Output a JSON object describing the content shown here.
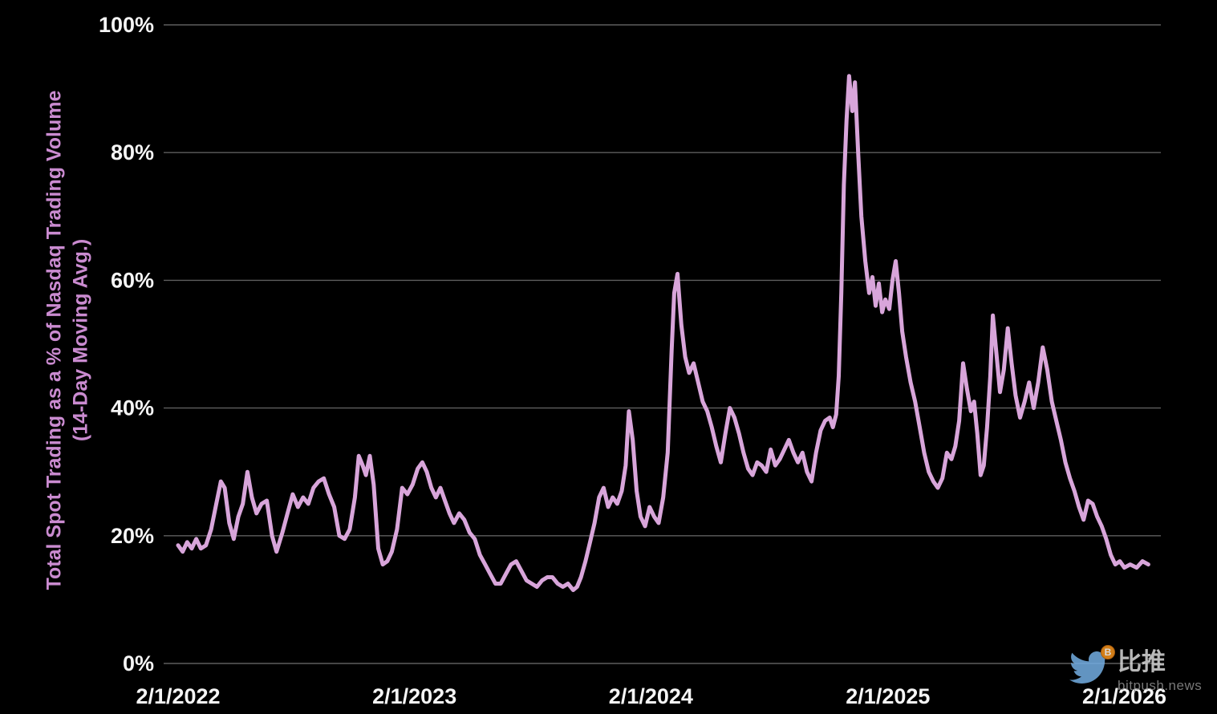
{
  "page": {
    "background": "#000000"
  },
  "chart_data": {
    "type": "line",
    "title": "",
    "xlabel": "",
    "ylabel": "Total Spot Trading as a % of Nasdaq Trading Volume (14-Day Moving Avg.)",
    "ylabel_line1": "Total Spot Trading as a % of Nasdaq Trading Volume",
    "ylabel_line2": "(14-Day Moving Avg.)",
    "ylim": [
      0,
      100
    ],
    "yticks": [
      0,
      20,
      40,
      60,
      80,
      100
    ],
    "ytick_labels": [
      "0%",
      "20%",
      "40%",
      "60%",
      "80%",
      "100%"
    ],
    "xtick_dates": [
      "2022-02-01",
      "2023-02-01",
      "2024-02-01",
      "2025-02-01",
      "2026-02-01"
    ],
    "xtick_labels": [
      "2/1/2022",
      "2/1/2023",
      "2/1/2024",
      "2/1/2025",
      "2/1/2026"
    ],
    "x_range": [
      "2022-02-01",
      "2026-03-12"
    ],
    "grid": "horizontal",
    "grid_color": "#6f6f6f",
    "axis_label_color": "#f5f5f5",
    "line_color": "#d8a5da",
    "line_width": 5,
    "series": [
      {
        "name": "Total Spot Trading as a % of Nasdaq Trading Volume (14-Day Moving Avg.)",
        "points": [
          [
            "2022-02-01",
            18.5
          ],
          [
            "2022-02-08",
            17.5
          ],
          [
            "2022-02-15",
            19
          ],
          [
            "2022-02-22",
            18
          ],
          [
            "2022-03-01",
            19.5
          ],
          [
            "2022-03-08",
            18
          ],
          [
            "2022-03-16",
            18.5
          ],
          [
            "2022-03-24",
            21
          ],
          [
            "2022-04-01",
            25
          ],
          [
            "2022-04-08",
            28.5
          ],
          [
            "2022-04-14",
            27.5
          ],
          [
            "2022-04-21",
            22
          ],
          [
            "2022-04-28",
            19.5
          ],
          [
            "2022-05-05",
            23
          ],
          [
            "2022-05-12",
            25
          ],
          [
            "2022-05-19",
            30
          ],
          [
            "2022-05-26",
            26
          ],
          [
            "2022-06-02",
            23.5
          ],
          [
            "2022-06-10",
            25
          ],
          [
            "2022-06-18",
            25.5
          ],
          [
            "2022-06-26",
            20
          ],
          [
            "2022-07-03",
            17.5
          ],
          [
            "2022-07-12",
            20.5
          ],
          [
            "2022-07-20",
            23.5
          ],
          [
            "2022-07-28",
            26.5
          ],
          [
            "2022-08-05",
            24.5
          ],
          [
            "2022-08-13",
            26
          ],
          [
            "2022-08-21",
            25
          ],
          [
            "2022-08-29",
            27.5
          ],
          [
            "2022-09-06",
            28.5
          ],
          [
            "2022-09-14",
            29
          ],
          [
            "2022-09-22",
            26.5
          ],
          [
            "2022-09-30",
            24.5
          ],
          [
            "2022-10-08",
            20
          ],
          [
            "2022-10-16",
            19.5
          ],
          [
            "2022-10-24",
            21
          ],
          [
            "2022-11-01",
            26
          ],
          [
            "2022-11-07",
            32.5
          ],
          [
            "2022-11-13",
            31
          ],
          [
            "2022-11-18",
            29.5
          ],
          [
            "2022-11-24",
            32.5
          ],
          [
            "2022-11-30",
            28
          ],
          [
            "2022-12-07",
            18
          ],
          [
            "2022-12-14",
            15.5
          ],
          [
            "2022-12-21",
            16
          ],
          [
            "2022-12-28",
            17.5
          ],
          [
            "2023-01-05",
            21
          ],
          [
            "2023-01-13",
            27.5
          ],
          [
            "2023-01-21",
            26.5
          ],
          [
            "2023-01-29",
            28
          ],
          [
            "2023-02-06",
            30.5
          ],
          [
            "2023-02-13",
            31.5
          ],
          [
            "2023-02-20",
            30
          ],
          [
            "2023-02-27",
            27.5
          ],
          [
            "2023-03-06",
            26
          ],
          [
            "2023-03-13",
            27.5
          ],
          [
            "2023-03-20",
            25.5
          ],
          [
            "2023-03-27",
            23.5
          ],
          [
            "2023-04-03",
            22
          ],
          [
            "2023-04-11",
            23.5
          ],
          [
            "2023-04-19",
            22.5
          ],
          [
            "2023-04-27",
            20.5
          ],
          [
            "2023-05-05",
            19.5
          ],
          [
            "2023-05-13",
            17
          ],
          [
            "2023-05-21",
            15.5
          ],
          [
            "2023-05-29",
            14
          ],
          [
            "2023-06-06",
            12.5
          ],
          [
            "2023-06-14",
            12.5
          ],
          [
            "2023-06-22",
            14
          ],
          [
            "2023-06-30",
            15.5
          ],
          [
            "2023-07-08",
            16
          ],
          [
            "2023-07-16",
            14.5
          ],
          [
            "2023-07-24",
            13
          ],
          [
            "2023-08-01",
            12.5
          ],
          [
            "2023-08-09",
            12
          ],
          [
            "2023-08-17",
            13
          ],
          [
            "2023-08-25",
            13.5
          ],
          [
            "2023-09-02",
            13.5
          ],
          [
            "2023-09-10",
            12.5
          ],
          [
            "2023-09-18",
            12
          ],
          [
            "2023-09-26",
            12.5
          ],
          [
            "2023-10-04",
            11.5
          ],
          [
            "2023-10-10",
            12
          ],
          [
            "2023-10-16",
            13.5
          ],
          [
            "2023-10-23",
            16
          ],
          [
            "2023-10-30",
            19
          ],
          [
            "2023-11-06",
            22
          ],
          [
            "2023-11-13",
            26
          ],
          [
            "2023-11-20",
            27.5
          ],
          [
            "2023-11-27",
            24.5
          ],
          [
            "2023-12-04",
            26
          ],
          [
            "2023-12-11",
            25
          ],
          [
            "2023-12-18",
            27
          ],
          [
            "2023-12-24",
            31
          ],
          [
            "2023-12-29",
            39.5
          ],
          [
            "2024-01-04",
            35
          ],
          [
            "2024-01-10",
            27
          ],
          [
            "2024-01-16",
            23
          ],
          [
            "2024-01-23",
            21.5
          ],
          [
            "2024-01-30",
            24.5
          ],
          [
            "2024-02-06",
            23
          ],
          [
            "2024-02-13",
            22
          ],
          [
            "2024-02-20",
            26
          ],
          [
            "2024-02-27",
            33
          ],
          [
            "2024-03-04",
            49
          ],
          [
            "2024-03-08",
            58
          ],
          [
            "2024-03-13",
            61
          ],
          [
            "2024-03-19",
            53
          ],
          [
            "2024-03-25",
            48
          ],
          [
            "2024-03-31",
            45.5
          ],
          [
            "2024-04-07",
            47
          ],
          [
            "2024-04-14",
            44
          ],
          [
            "2024-04-21",
            41
          ],
          [
            "2024-04-28",
            39.5
          ],
          [
            "2024-05-05",
            37
          ],
          [
            "2024-05-12",
            34
          ],
          [
            "2024-05-19",
            31.5
          ],
          [
            "2024-05-26",
            36
          ],
          [
            "2024-06-02",
            40
          ],
          [
            "2024-06-09",
            38.5
          ],
          [
            "2024-06-16",
            36
          ],
          [
            "2024-06-23",
            33
          ],
          [
            "2024-06-30",
            30.5
          ],
          [
            "2024-07-07",
            29.5
          ],
          [
            "2024-07-14",
            31.5
          ],
          [
            "2024-07-21",
            31
          ],
          [
            "2024-07-28",
            30
          ],
          [
            "2024-08-04",
            33.5
          ],
          [
            "2024-08-11",
            31
          ],
          [
            "2024-08-18",
            32
          ],
          [
            "2024-08-25",
            33.5
          ],
          [
            "2024-09-01",
            35
          ],
          [
            "2024-09-08",
            33
          ],
          [
            "2024-09-15",
            31.5
          ],
          [
            "2024-09-22",
            33
          ],
          [
            "2024-09-29",
            30
          ],
          [
            "2024-10-06",
            28.5
          ],
          [
            "2024-10-13",
            33
          ],
          [
            "2024-10-20",
            36.5
          ],
          [
            "2024-10-27",
            38
          ],
          [
            "2024-11-03",
            38.5
          ],
          [
            "2024-11-08",
            37
          ],
          [
            "2024-11-13",
            39
          ],
          [
            "2024-11-17",
            45
          ],
          [
            "2024-11-21",
            58
          ],
          [
            "2024-11-25",
            75
          ],
          [
            "2024-11-29",
            85
          ],
          [
            "2024-12-03",
            92
          ],
          [
            "2024-12-08",
            86.5
          ],
          [
            "2024-12-12",
            91
          ],
          [
            "2024-12-17",
            80
          ],
          [
            "2024-12-22",
            70
          ],
          [
            "2024-12-28",
            63
          ],
          [
            "2025-01-03",
            58
          ],
          [
            "2025-01-08",
            60.5
          ],
          [
            "2025-01-13",
            56
          ],
          [
            "2025-01-18",
            59.5
          ],
          [
            "2025-01-23",
            55
          ],
          [
            "2025-01-28",
            57
          ],
          [
            "2025-02-03",
            55.5
          ],
          [
            "2025-02-08",
            60
          ],
          [
            "2025-02-13",
            63
          ],
          [
            "2025-02-18",
            58
          ],
          [
            "2025-02-23",
            52
          ],
          [
            "2025-03-01",
            48
          ],
          [
            "2025-03-08",
            44
          ],
          [
            "2025-03-15",
            41
          ],
          [
            "2025-03-22",
            37
          ],
          [
            "2025-03-29",
            33
          ],
          [
            "2025-04-05",
            30
          ],
          [
            "2025-04-12",
            28.5
          ],
          [
            "2025-04-19",
            27.5
          ],
          [
            "2025-04-26",
            29
          ],
          [
            "2025-05-03",
            33
          ],
          [
            "2025-05-10",
            32
          ],
          [
            "2025-05-16",
            34
          ],
          [
            "2025-05-22",
            38
          ],
          [
            "2025-05-28",
            47
          ],
          [
            "2025-06-03",
            43
          ],
          [
            "2025-06-09",
            39.5
          ],
          [
            "2025-06-14",
            41
          ],
          [
            "2025-06-19",
            36
          ],
          [
            "2025-06-24",
            29.5
          ],
          [
            "2025-06-29",
            31
          ],
          [
            "2025-07-04",
            37
          ],
          [
            "2025-07-09",
            45
          ],
          [
            "2025-07-13",
            54.5
          ],
          [
            "2025-07-18",
            49
          ],
          [
            "2025-07-24",
            42.5
          ],
          [
            "2025-07-30",
            46
          ],
          [
            "2025-08-05",
            52.5
          ],
          [
            "2025-08-11",
            47
          ],
          [
            "2025-08-17",
            42
          ],
          [
            "2025-08-24",
            38.5
          ],
          [
            "2025-08-31",
            41
          ],
          [
            "2025-09-07",
            44
          ],
          [
            "2025-09-14",
            40
          ],
          [
            "2025-09-21",
            44
          ],
          [
            "2025-09-28",
            49.5
          ],
          [
            "2025-10-05",
            46
          ],
          [
            "2025-10-12",
            41
          ],
          [
            "2025-10-19",
            38
          ],
          [
            "2025-10-26",
            35
          ],
          [
            "2025-11-02",
            31.5
          ],
          [
            "2025-11-09",
            29
          ],
          [
            "2025-11-16",
            27
          ],
          [
            "2025-11-23",
            24.5
          ],
          [
            "2025-11-30",
            22.5
          ],
          [
            "2025-12-07",
            25.5
          ],
          [
            "2025-12-14",
            25
          ],
          [
            "2025-12-21",
            23
          ],
          [
            "2025-12-28",
            21.5
          ],
          [
            "2026-01-04",
            19.5
          ],
          [
            "2026-01-11",
            17
          ],
          [
            "2026-01-18",
            15.5
          ],
          [
            "2026-01-25",
            16
          ],
          [
            "2026-02-01",
            15
          ],
          [
            "2026-02-10",
            15.5
          ],
          [
            "2026-02-20",
            15
          ],
          [
            "2026-03-01",
            16
          ],
          [
            "2026-03-10",
            15.5
          ]
        ]
      }
    ]
  },
  "watermark": {
    "brand": "比推",
    "domain": "bitpush.news",
    "coin_symbol": "B",
    "bird_color": "#74aee3",
    "coin_color": "#f7941d"
  }
}
